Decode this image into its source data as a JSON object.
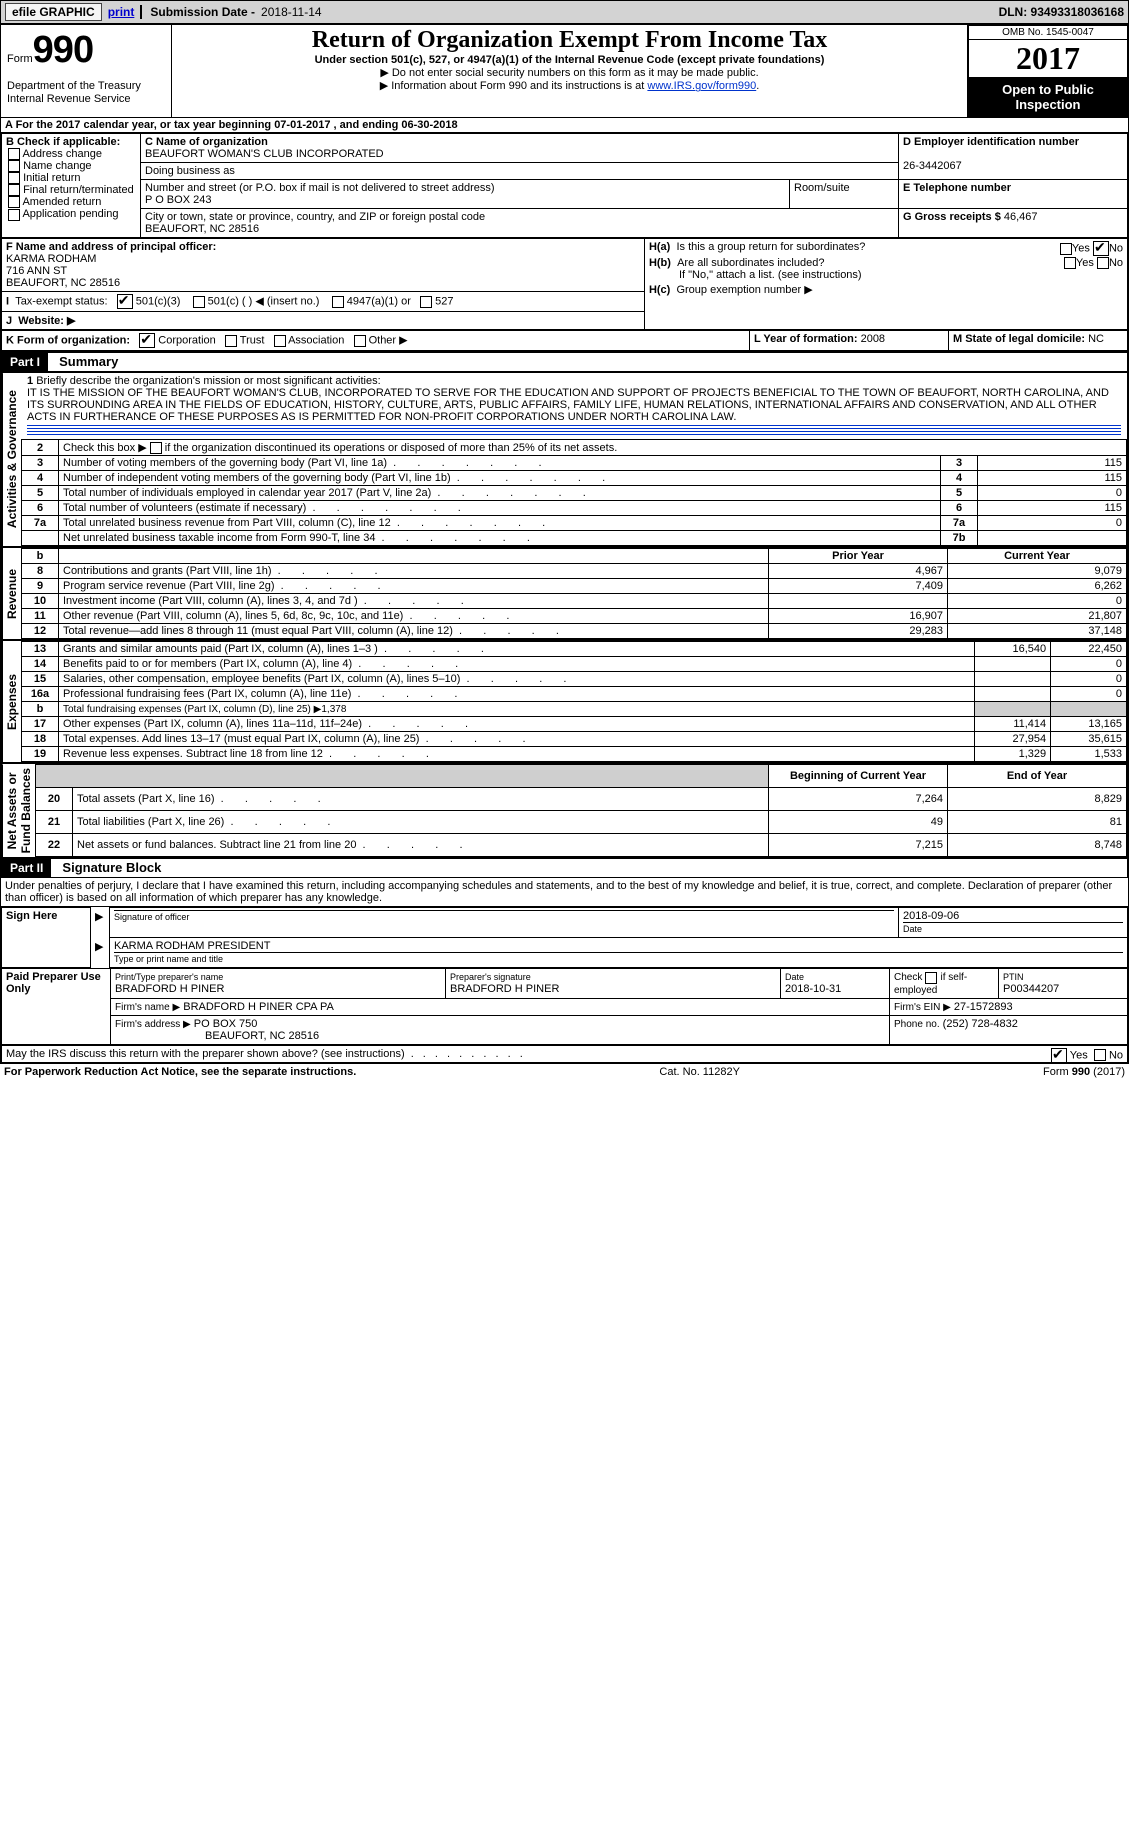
{
  "topbar": {
    "efile": "efile GRAPHIC",
    "print": "print",
    "subDateLbl": "Submission Date -",
    "subDate": "2018-11-14",
    "dln": "DLN: 93493318036168"
  },
  "header": {
    "form": "Form",
    "f990": "990",
    "dept": "Department of the Treasury\nInternal Revenue Service",
    "title": "Return of Organization Exempt From Income Tax",
    "subtitle": "Under section 501(c), 527, or 4947(a)(1) of the Internal Revenue Code (except private foundations)",
    "note1": "▶ Do not enter social security numbers on this form as it may be made public.",
    "note2pre": "▶ Information about Form 990 and its instructions is at ",
    "note2link": "www.IRS.gov/form990",
    "omb": "OMB No. 1545-0047",
    "year": "2017",
    "open": "Open to Public Inspection"
  },
  "periodA": {
    "text": "A For the 2017 calendar year, or tax year beginning 07-01-2017    , and ending 06-30-2018"
  },
  "boxB": {
    "title": "B Check if applicable:",
    "opts": [
      "Address change",
      "Name change",
      "Initial return",
      "Final return/terminated",
      "Amended return",
      "Application pending"
    ]
  },
  "boxC": {
    "lbl": "C Name of organization",
    "name": "BEAUFORT WOMAN'S CLUB INCORPORATED",
    "dba": "Doing business as",
    "streetLbl": "Number and street (or P.O. box if mail is not delivered to street address)",
    "street": "P O BOX 243",
    "roomLbl": "Room/suite",
    "cityLbl": "City or town, state or province, country, and ZIP or foreign postal code",
    "city": "BEAUFORT, NC  28516"
  },
  "boxD": {
    "lbl": "D Employer identification number",
    "ein": "26-3442067"
  },
  "boxE": {
    "lbl": "E Telephone number"
  },
  "boxG": {
    "lbl": "G Gross receipts $",
    "val": "46,467"
  },
  "boxF": {
    "lbl": "F Name and address of principal officer:",
    "name": "KARMA RODHAM",
    "addr1": "716 ANN ST",
    "addr2": "BEAUFORT, NC  28516"
  },
  "boxH": {
    "aLbl": "H(a)",
    "aTxt": "Is this a group return for subordinates?",
    "yes": "Yes",
    "no": "No",
    "bLbl": "H(b)",
    "bTxt": "Are all subordinates included?",
    "bNote": "If \"No,\" attach a list. (see instructions)",
    "cLbl": "H(c)",
    "cTxt": "Group exemption number ▶"
  },
  "taxExempt": {
    "i": "I",
    "lbl": "Tax-exempt status:",
    "o1": "501(c)(3)",
    "o2": "501(c) (  ) ◀ (insert no.)",
    "o3": "4947(a)(1) or",
    "o4": "527"
  },
  "website": {
    "j": "J",
    "lbl": "Website: ▶"
  },
  "k": {
    "lbl": "K Form of organization:",
    "o1": "Corporation",
    "o2": "Trust",
    "o3": "Association",
    "o4": "Other ▶"
  },
  "l": {
    "lbl": "L Year of formation:",
    "val": "2008"
  },
  "m": {
    "lbl": "M State of legal domicile:",
    "val": "NC"
  },
  "part1": {
    "bar": "Part I",
    "title": "Summary"
  },
  "mission": {
    "nr": "1",
    "lbl": "Briefly describe the organization's mission or most significant activities:",
    "text": "IT IS THE MISSION OF THE BEAUFORT WOMAN'S CLUB, INCORPORATED TO SERVE FOR THE EDUCATION AND SUPPORT OF PROJECTS BENEFICIAL TO THE TOWN OF BEAUFORT, NORTH CAROLINA, AND ITS SURROUNDING AREA IN THE FIELDS OF EDUCATION, HISTORY, CULTURE, ARTS, PUBLIC AFFAIRS, FAMILY LIFE, HUMAN RELATIONS, INTERNATIONAL AFFAIRS AND CONSERVATION, AND ALL OTHER ACTS IN FURTHERANCE OF THESE PURPOSES AS IS PERMITTED FOR NON-PROFIT CORPORATIONS UNDER NORTH CAROLINA LAW."
  },
  "govLines": [
    {
      "n": "2",
      "t": "Check this box ▶        if the organization discontinued its operations or disposed of more than 25% of its net assets.",
      "noval": true
    },
    {
      "n": "3",
      "t": "Number of voting members of the governing body (Part VI, line 1a)",
      "in": "3",
      "v": "115"
    },
    {
      "n": "4",
      "t": "Number of independent voting members of the governing body (Part VI, line 1b)",
      "in": "4",
      "v": "115"
    },
    {
      "n": "5",
      "t": "Total number of individuals employed in calendar year 2017 (Part V, line 2a)",
      "in": "5",
      "v": "0"
    },
    {
      "n": "6",
      "t": "Total number of volunteers (estimate if necessary)",
      "in": "6",
      "v": "115"
    },
    {
      "n": "7a",
      "t": "Total unrelated business revenue from Part VIII, column (C), line 12",
      "in": "7a",
      "v": "0"
    },
    {
      "n": "",
      "t": "Net unrelated business taxable income from Form 990-T, line 34",
      "in": "7b",
      "v": ""
    }
  ],
  "yearHead": {
    "b": "b",
    "prior": "Prior Year",
    "current": "Current Year"
  },
  "rev": [
    {
      "n": "8",
      "t": "Contributions and grants (Part VIII, line 1h)",
      "p": "4,967",
      "c": "9,079"
    },
    {
      "n": "9",
      "t": "Program service revenue (Part VIII, line 2g)",
      "p": "7,409",
      "c": "6,262"
    },
    {
      "n": "10",
      "t": "Investment income (Part VIII, column (A), lines 3, 4, and 7d )",
      "p": "",
      "c": "0"
    },
    {
      "n": "11",
      "t": "Other revenue (Part VIII, column (A), lines 5, 6d, 8c, 9c, 10c, and 11e)",
      "p": "16,907",
      "c": "21,807"
    },
    {
      "n": "12",
      "t": "Total revenue—add lines 8 through 11 (must equal Part VIII, column (A), line 12)",
      "p": "29,283",
      "c": "37,148"
    }
  ],
  "exp": [
    {
      "n": "13",
      "t": "Grants and similar amounts paid (Part IX, column (A), lines 1–3 )",
      "p": "16,540",
      "c": "22,450"
    },
    {
      "n": "14",
      "t": "Benefits paid to or for members (Part IX, column (A), line 4)",
      "p": "",
      "c": "0"
    },
    {
      "n": "15",
      "t": "Salaries, other compensation, employee benefits (Part IX, column (A), lines 5–10)",
      "p": "",
      "c": "0"
    },
    {
      "n": "16a",
      "t": "Professional fundraising fees (Part IX, column (A), line 11e)",
      "p": "",
      "c": "0"
    },
    {
      "n": "b",
      "t": "Total fundraising expenses (Part IX, column (D), line 25) ▶1,378",
      "p": "shade",
      "c": "shade",
      "small": true
    },
    {
      "n": "17",
      "t": "Other expenses (Part IX, column (A), lines 11a–11d, 11f–24e)",
      "p": "11,414",
      "c": "13,165"
    },
    {
      "n": "18",
      "t": "Total expenses. Add lines 13–17 (must equal Part IX, column (A), line 25)",
      "p": "27,954",
      "c": "35,615"
    },
    {
      "n": "19",
      "t": "Revenue less expenses. Subtract line 18 from line 12",
      "p": "1,329",
      "c": "1,533"
    }
  ],
  "netHead": {
    "p": "Beginning of Current Year",
    "c": "End of Year"
  },
  "net": [
    {
      "n": "20",
      "t": "Total assets (Part X, line 16)",
      "p": "7,264",
      "c": "8,829"
    },
    {
      "n": "21",
      "t": "Total liabilities (Part X, line 26)",
      "p": "49",
      "c": "81"
    },
    {
      "n": "22",
      "t": "Net assets or fund balances. Subtract line 21 from line 20",
      "p": "7,215",
      "c": "8,748"
    }
  ],
  "sideLabels": {
    "gov": "Activities & Governance",
    "rev": "Revenue",
    "exp": "Expenses",
    "net": "Net Assets or\nFund Balances"
  },
  "part2": {
    "bar": "Part II",
    "title": "Signature Block",
    "decl": "Under penalties of perjury, I declare that I have examined this return, including accompanying schedules and statements, and to the best of my knowledge and belief, it is true, correct, and complete. Declaration of preparer (other than officer) is based on all information of which preparer has any knowledge."
  },
  "sign": {
    "hereLbl": "Sign Here",
    "sigOf": "Signature of officer",
    "date": "2018-09-06",
    "dateLbl": "Date",
    "typed": "KARMA RODHAM  PRESIDENT",
    "typedLbl": "Type or print name and title"
  },
  "paid": {
    "lbl": "Paid Preparer Use Only",
    "h1": "Print/Type preparer's name",
    "v1": "BRADFORD H PINER",
    "h2": "Preparer's signature",
    "v2": "BRADFORD H PINER",
    "h3": "Date",
    "v3": "2018-10-31",
    "h4pre": "Check",
    "h4": "if self-employed",
    "h5": "PTIN",
    "v5": "P00344207",
    "firmName": "Firm's name      ▶",
    "firmNameV": "BRADFORD H PINER CPA PA",
    "firmAddr": "Firm's address ▶",
    "firmAddrV": "PO BOX 750",
    "firmCity": "BEAUFORT, NC  28516",
    "einLbl": "Firm's EIN ▶",
    "einV": "27-1572893",
    "phoneLbl": "Phone no.",
    "phoneV": "(252) 728-4832"
  },
  "may": {
    "q": "May the IRS discuss this return with the preparer shown above? (see instructions)",
    "yes": "Yes",
    "no": "No"
  },
  "footer": {
    "left": "For Paperwork Reduction Act Notice, see the separate instructions.",
    "mid": "Cat. No. 11282Y",
    "right": "Form 990 (2017)"
  }
}
